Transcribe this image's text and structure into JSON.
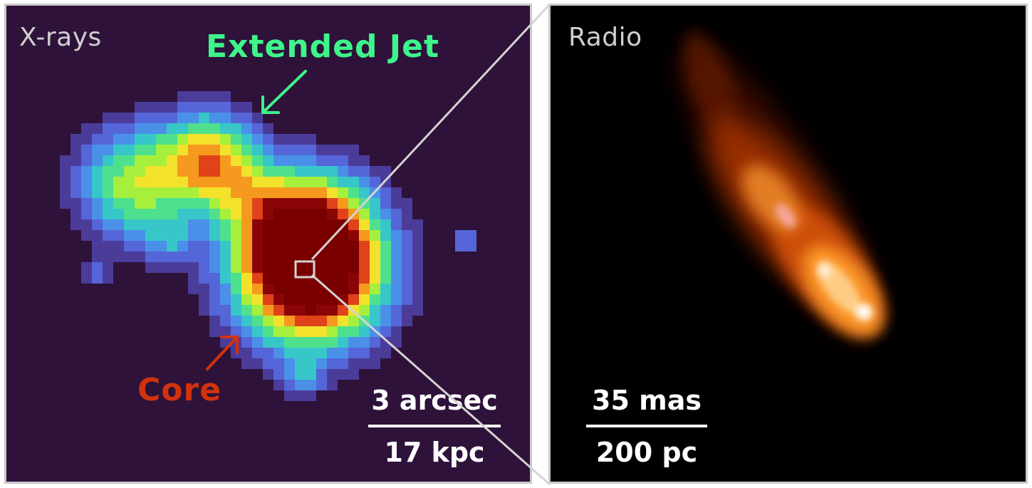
{
  "left_panel": {
    "label": "X-rays",
    "jet_annotation": "Extended Jet",
    "core_annotation": "Core",
    "scale_top": "3 arcsec",
    "scale_bottom": "17 kpc"
  },
  "right_panel": {
    "label": "Radio",
    "scale_top": "35 mas",
    "scale_bottom": "200 pc"
  },
  "colors": {
    "xray_background": "#2e1239",
    "radio_background": "#000000",
    "jet_annotation": "#3ef58a",
    "core_annotation": "#d2320c",
    "panel_border": "#c9c9c9",
    "zoom_lines": "#d4d4d4"
  },
  "icons": {
    "jet_arrow": "arrow-down-left-icon",
    "core_arrow": "arrow-up-right-icon"
  }
}
